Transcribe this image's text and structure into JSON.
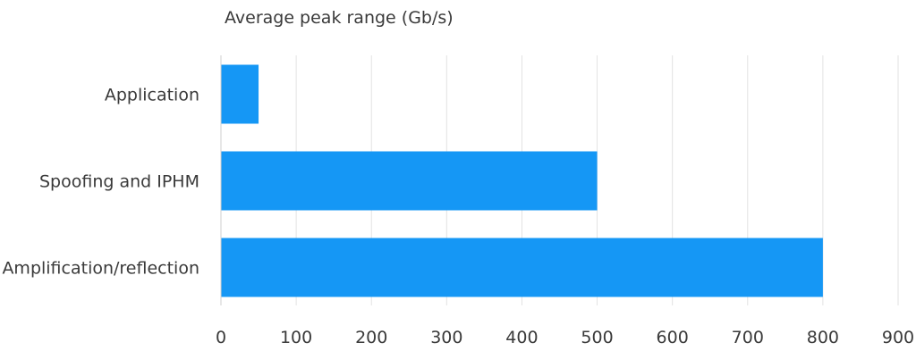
{
  "chart_data": {
    "type": "bar",
    "orientation": "horizontal",
    "title": "Average peak range (Gb/s)",
    "categories": [
      "Application",
      "Spoofing and IPHM",
      "Amplification/reflection"
    ],
    "values": [
      50,
      500,
      800
    ],
    "xlim": [
      0,
      900
    ],
    "xticks": [
      "0",
      "100",
      "200",
      "300",
      "400",
      "500",
      "600",
      "700",
      "800",
      "900"
    ],
    "grid": true,
    "bar_color": "#1597f5",
    "grid_color": "#e2e2e2",
    "axis_color": "#cfcfcf",
    "text_color": "#3a3a3a"
  }
}
